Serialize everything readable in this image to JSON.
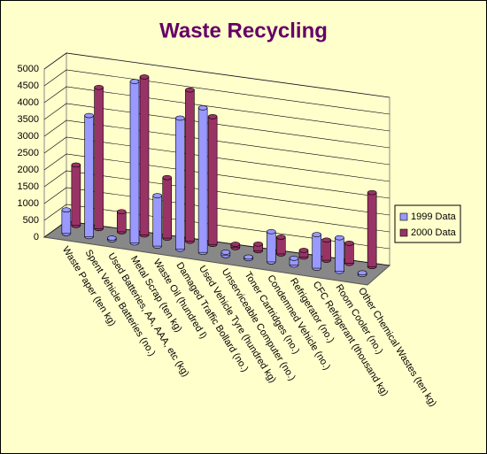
{
  "chart_data": {
    "type": "bar",
    "title": "Waste Recycling",
    "categories": [
      "Waste Paper (ten kg)",
      "Spent Vehicle Batteries (no.)",
      "Used Batteries, AA, AAA, etc (kg)",
      "Metal Scrap (ten kg)",
      "Waste Oil (hundred l)",
      "Damaged Traffic Bollard (no.)",
      "Used Vehicle Tyre (hundred kg)",
      "Unserviceable Computer (no.)",
      "Toner Cartridges (no.)",
      "Condemned Vehicle (no.)",
      "Refrigerator (no.)",
      "CFC Refrigerant (thousand kg)",
      "Room Cooler (no.)",
      "Other Chemical Wastes (ten kg)"
    ],
    "series": [
      {
        "name": "1999 Data",
        "color": "#9999ff",
        "values": [
          700,
          3600,
          50,
          4800,
          1500,
          3900,
          4300,
          100,
          50,
          900,
          200,
          1000,
          1000,
          50
        ]
      },
      {
        "name": "2000 Data",
        "color": "#993366",
        "values": [
          1800,
          4200,
          600,
          4700,
          1800,
          4500,
          3800,
          100,
          200,
          500,
          200,
          600,
          600,
          2200
        ]
      }
    ],
    "ylim": [
      0,
      5000
    ],
    "yticks": [
      0,
      500,
      1000,
      1500,
      2000,
      2500,
      3000,
      3500,
      4000,
      4500,
      5000
    ],
    "grid": true,
    "legend": "right"
  }
}
